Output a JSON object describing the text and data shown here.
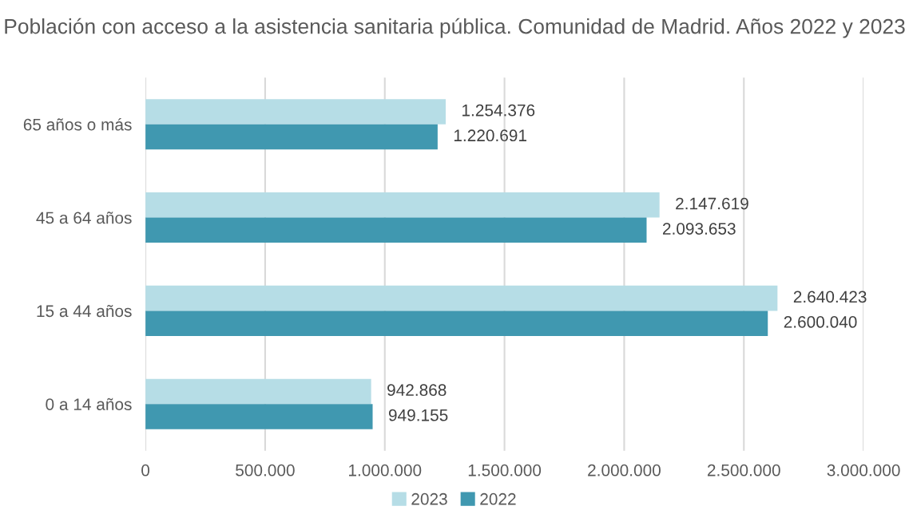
{
  "chart_data": {
    "type": "bar",
    "orientation": "horizontal",
    "title": "Población con acceso a la asistencia sanitaria pública. Comunidad de Madrid. Años 2022 y 2023",
    "categories": [
      "65 años o más",
      "45 a 64 años",
      "15 a 44 años",
      "0 a 14 años"
    ],
    "series": [
      {
        "name": "2023",
        "color": "#b6dde6",
        "values": [
          1254376,
          2147619,
          2640423,
          942868
        ],
        "value_labels": [
          "1.254.376",
          "2.147.619",
          "2.640.423",
          "942.868"
        ]
      },
      {
        "name": "2022",
        "color": "#4098b0",
        "values": [
          1220691,
          2093653,
          2600040,
          949155
        ],
        "value_labels": [
          "1.220.691",
          "2.093.653",
          "2.600.040",
          "949.155"
        ]
      }
    ],
    "xlim": [
      0,
      3000000
    ],
    "xticks": [
      0,
      {
        "value": 500000,
        "label": "500.000"
      },
      {
        "value": 1000000,
        "label": "1.000.000"
      },
      {
        "value": 1500000,
        "label": "1.500.000"
      },
      {
        "value": 2000000,
        "label": "2.000.000"
      },
      {
        "value": 2500000,
        "label": "2.500.000"
      },
      {
        "value": 3000000,
        "label": "3.000.000"
      }
    ],
    "grid": "x",
    "legend": "bottom"
  }
}
